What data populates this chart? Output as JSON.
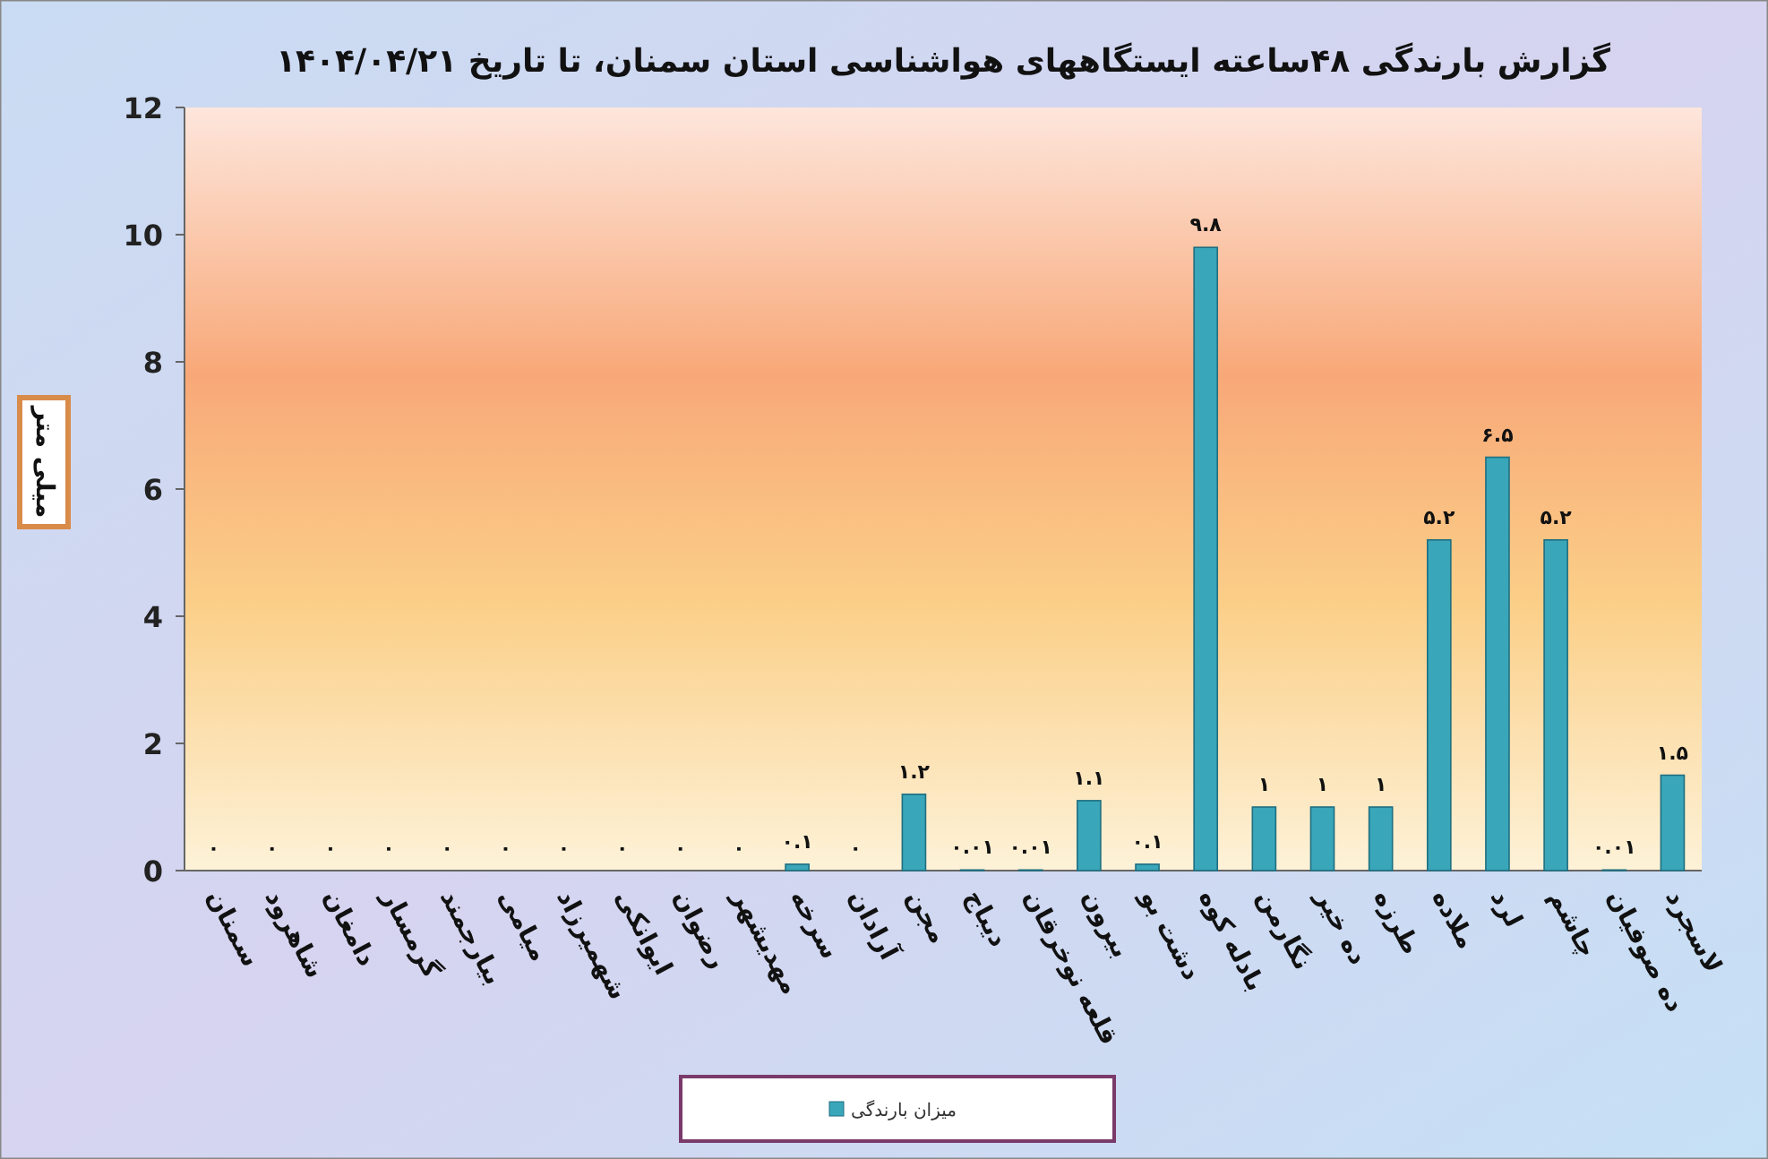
{
  "chart_data": {
    "type": "bar",
    "title": "گزارش بارندگی ۴۸ساعته ایستگاههای هواشناسی استان سمنان، تا تاریخ ۱۴۰۴/۰۴/۲۱",
    "ylabel": "میلی متر",
    "categories": [
      "سمنان",
      "شاهرود",
      "دامغان",
      "گرمسار",
      "بیارجمند",
      "میامی",
      "شهمیرزاد",
      "ایوانکی",
      "رضوان",
      "مهدیشهر",
      "سرخه",
      "آرادان",
      "مجن",
      "دیباج",
      "قلعه نوخرقان",
      "بیرون",
      "دشت بو",
      "بادله کوه",
      "نگارمن",
      "ده خیر",
      "طرزه",
      "ملاده",
      "لرد",
      "چاشم",
      "ده صوفیان",
      "لاسجرد"
    ],
    "series": [
      {
        "name": "میزان بارندگی",
        "color": "#3aa6b9",
        "values": [
          0,
          0,
          0,
          0,
          0,
          0,
          0,
          0,
          0,
          0,
          0.1,
          0,
          1.2,
          0.01,
          0.01,
          1.1,
          0.1,
          9.8,
          1,
          1,
          1,
          5.2,
          6.5,
          5.2,
          0.01,
          1.5
        ],
        "value_labels": [
          "۰",
          "۰",
          "۰",
          "۰",
          "۰",
          "۰",
          "۰",
          "۰",
          "۰",
          "۰",
          "۰.۱",
          "۰",
          "۱.۲",
          "۰.۰۱",
          "۰.۰۱",
          "۱.۱",
          "۰.۱",
          "۹.۸",
          "۱",
          "۱",
          "۱",
          "۵.۲",
          "۶.۵",
          "۵.۲",
          "۰.۰۱",
          "۱.۵"
        ]
      }
    ],
    "ylim": [
      0,
      12
    ],
    "yticks": [
      0,
      2,
      4,
      6,
      8,
      10,
      12
    ],
    "grid": false,
    "legend": "bottom"
  }
}
